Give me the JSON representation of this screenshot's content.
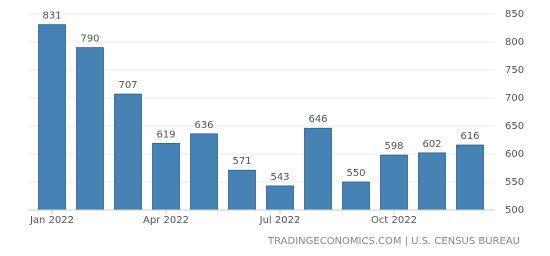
{
  "chart_data": {
    "type": "bar",
    "categories": [
      "Jan 2022",
      null,
      null,
      "Apr 2022",
      null,
      null,
      "Jul 2022",
      null,
      null,
      "Oct 2022",
      null,
      null
    ],
    "values": [
      831,
      790,
      707,
      619,
      636,
      571,
      543,
      646,
      550,
      598,
      602,
      616
    ],
    "color": "#4682b4",
    "ylim": [
      500,
      850
    ],
    "yticks": [
      500,
      550,
      600,
      650,
      700,
      750,
      800,
      850
    ],
    "grid": true,
    "source": "TRADINGECONOMICS.COM | U.S. CENSUS BUREAU"
  }
}
